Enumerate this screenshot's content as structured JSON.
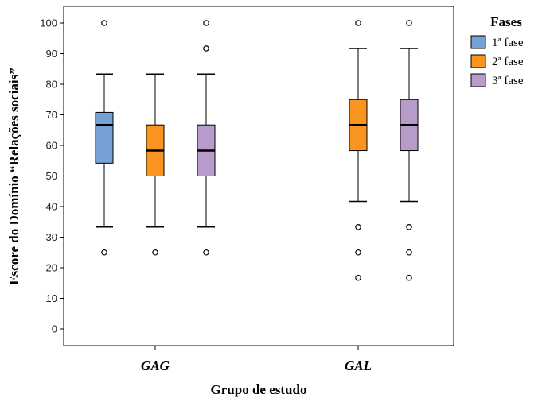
{
  "chart_data": {
    "type": "boxplot",
    "xlabel": "Grupo de estudo",
    "ylabel": "Escore do Domínio “Relações sociais”",
    "ylim": [
      0,
      100
    ],
    "yticks": [
      "0",
      "10",
      "20",
      "30",
      "40",
      "50",
      "60",
      "70",
      "80",
      "90",
      "100"
    ],
    "categories": [
      "GAG",
      "GAL"
    ],
    "legend_title": "Fases",
    "legend_position": "right",
    "grid": false,
    "series": [
      {
        "name": "1ª fase",
        "color": "#76a1d4",
        "boxes": [
          {
            "category": "GAG",
            "min": 33.3,
            "q1": 54.2,
            "median": 66.7,
            "q3": 70.8,
            "max": 83.3,
            "outliers": [
              25,
              100
            ]
          },
          null
        ]
      },
      {
        "name": "2ª fase",
        "color": "#f9951f",
        "boxes": [
          {
            "category": "GAG",
            "min": 33.3,
            "q1": 50,
            "median": 58.3,
            "q3": 66.7,
            "max": 83.3,
            "outliers": [
              25
            ]
          },
          {
            "category": "GAL",
            "min": 41.7,
            "q1": 58.3,
            "median": 66.7,
            "q3": 75,
            "max": 91.7,
            "outliers": [
              33.3,
              25,
              16.7,
              100
            ]
          }
        ]
      },
      {
        "name": "3ª fase",
        "color": "#b69bcb",
        "boxes": [
          {
            "category": "GAG",
            "min": 33.3,
            "q1": 50,
            "median": 58.3,
            "q3": 66.7,
            "max": 83.3,
            "outliers": [
              25,
              91.7,
              100
            ]
          },
          {
            "category": "GAL",
            "min": 41.7,
            "q1": 58.3,
            "median": 66.7,
            "q3": 75,
            "max": 91.7,
            "outliers": [
              33.3,
              25,
              16.7,
              100
            ]
          }
        ]
      }
    ]
  }
}
